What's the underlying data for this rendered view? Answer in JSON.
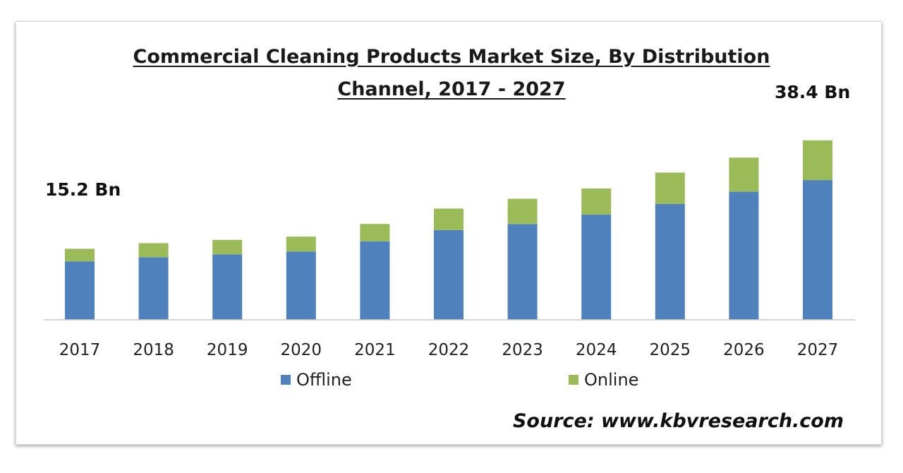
{
  "chart_data": {
    "type": "bar",
    "stacked": true,
    "title_line1": "Commercial Cleaning Products Market Size, By Distribution",
    "title_line2": "Channel, 2017 - 2027",
    "categories": [
      "2017",
      "2018",
      "2019",
      "2020",
      "2021",
      "2022",
      "2023",
      "2024",
      "2025",
      "2026",
      "2027"
    ],
    "series": [
      {
        "name": "Offline",
        "color": "#4f81bd",
        "values": [
          12.5,
          13.4,
          14.0,
          14.6,
          16.8,
          19.2,
          20.5,
          22.5,
          24.8,
          27.4,
          29.9
        ]
      },
      {
        "name": "Online",
        "color": "#9bbb59",
        "values": [
          2.7,
          3.0,
          3.1,
          3.2,
          3.7,
          4.6,
          5.4,
          5.6,
          6.7,
          7.3,
          8.5
        ]
      }
    ],
    "annotations": {
      "first": "15.2 Bn",
      "last": "38.4 Bn"
    },
    "legend_position": "bottom",
    "grid": false,
    "ylim": [
      0,
      40
    ]
  },
  "source": "Source: www.kbvresearch.com"
}
